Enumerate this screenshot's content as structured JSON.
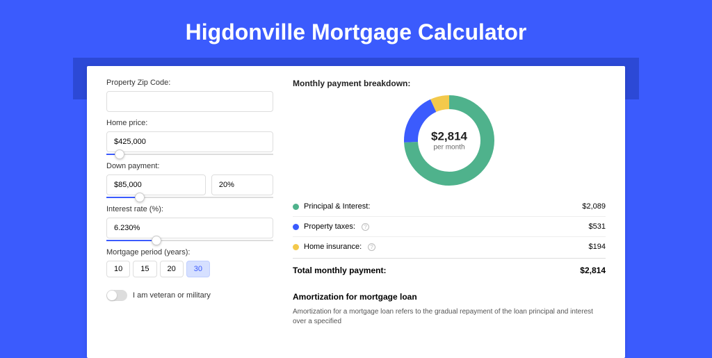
{
  "page": {
    "title": "Higdonville Mortgage Calculator",
    "background_color": "#3b5bfd",
    "stripe_color": "#2c49d6",
    "card_color": "#ffffff"
  },
  "form": {
    "zip_label": "Property Zip Code:",
    "zip_value": "",
    "home_price_label": "Home price:",
    "home_price_value": "$425,000",
    "home_price_slider_pct": 8,
    "down_payment_label": "Down payment:",
    "down_payment_value": "$85,000",
    "down_payment_pct_value": "20%",
    "down_payment_slider_pct": 20,
    "interest_label": "Interest rate (%):",
    "interest_value": "6.230%",
    "interest_slider_pct": 30,
    "period_label": "Mortgage period (years):",
    "periods": [
      {
        "label": "10",
        "active": false
      },
      {
        "label": "15",
        "active": false
      },
      {
        "label": "20",
        "active": false
      },
      {
        "label": "30",
        "active": true
      }
    ],
    "veteran_label": "I am veteran or military"
  },
  "breakdown": {
    "title": "Monthly payment breakdown:",
    "donut": {
      "center_value": "$2,814",
      "center_sub": "per month",
      "segments": [
        {
          "color": "#4fb28c",
          "fraction": 0.742
        },
        {
          "color": "#3b5bfd",
          "fraction": 0.189
        },
        {
          "color": "#f3c94b",
          "fraction": 0.069
        }
      ],
      "stroke_width": 20,
      "radius": 55
    },
    "rows": [
      {
        "label": "Principal & Interest:",
        "color": "#4fb28c",
        "value": "$2,089",
        "info": false
      },
      {
        "label": "Property taxes:",
        "color": "#3b5bfd",
        "value": "$531",
        "info": true
      },
      {
        "label": "Home insurance:",
        "color": "#f3c94b",
        "value": "$194",
        "info": true
      }
    ],
    "total_label": "Total monthly payment:",
    "total_value": "$2,814"
  },
  "amortization": {
    "title": "Amortization for mortgage loan",
    "text": "Amortization for a mortgage loan refers to the gradual repayment of the loan principal and interest over a specified"
  }
}
